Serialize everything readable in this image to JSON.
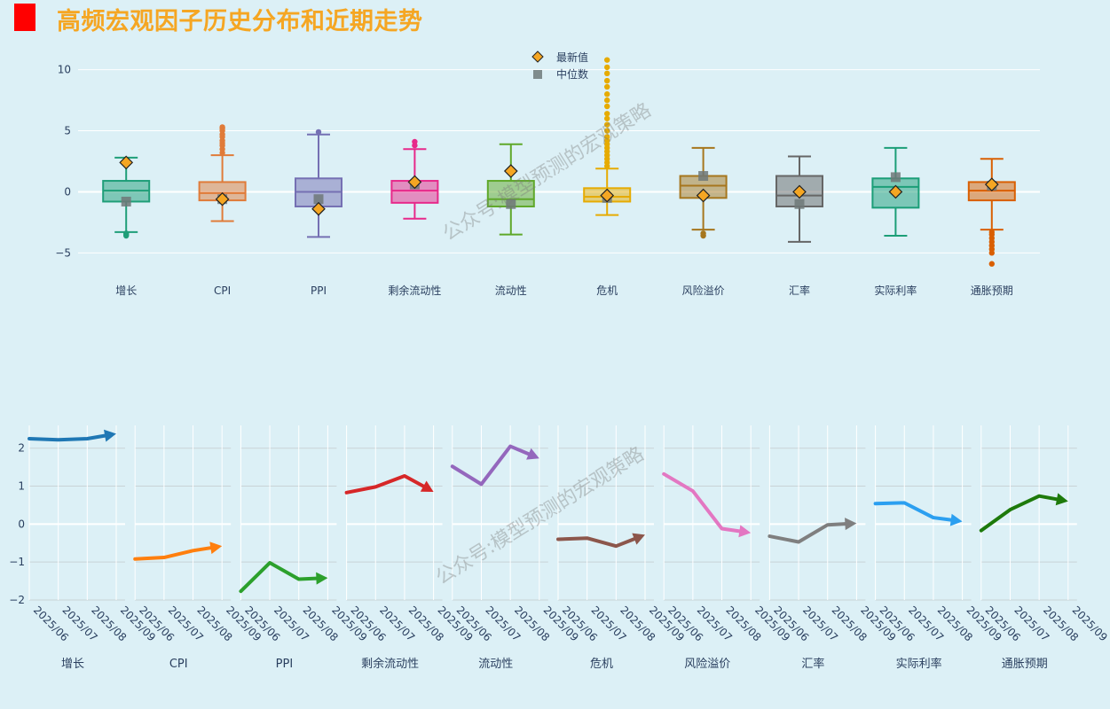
{
  "title": "高频宏观因子历史分布和近期走势",
  "watermark": "公众号:模型预测的宏观策略",
  "chart_data": [
    {
      "type": "box",
      "title": "高频宏观因子历史分布",
      "ylim": [
        -6.5,
        11.5
      ],
      "yticks": [
        -5,
        0,
        5,
        10
      ],
      "ytick_labels": [
        "−5",
        "0",
        "5",
        "10"
      ],
      "legend": [
        {
          "label": "最新值",
          "marker": "diamond",
          "color": "#f5a623"
        },
        {
          "label": "中位数",
          "marker": "square",
          "color": "#7f8c8d"
        }
      ],
      "categories": [
        "增长",
        "CPI",
        "PPI",
        "剩余流动性",
        "流动性",
        "危机",
        "风险溢价",
        "汇率",
        "实际利率",
        "通胀预期"
      ],
      "colors": [
        "#1f9e78",
        "#e07b39",
        "#7570b3",
        "#e7298a",
        "#5fa82a",
        "#e6ab02",
        "#a6761d",
        "#666666",
        "#1b9e77",
        "#d95f02"
      ],
      "boxes": [
        {
          "q1": -0.8,
          "median": 0.1,
          "q3": 0.9,
          "lower": -3.3,
          "upper": 2.8,
          "outliers": [
            -3.6,
            -3.5,
            -3.4
          ],
          "latest": 2.4,
          "mid_marker": -0.8
        },
        {
          "q1": -0.7,
          "median": -0.1,
          "q3": 0.8,
          "lower": -2.4,
          "upper": 3.0,
          "outliers": [
            3.2,
            3.5,
            3.8,
            4.0,
            4.2,
            4.5,
            4.7,
            5.0,
            5.2,
            5.3
          ],
          "latest": -0.6,
          "mid_marker": -0.6
        },
        {
          "q1": -1.2,
          "median": 0.0,
          "q3": 1.1,
          "lower": -3.7,
          "upper": 4.7,
          "outliers": [
            4.9
          ],
          "latest": -1.4,
          "mid_marker": -0.6
        },
        {
          "q1": -0.9,
          "median": 0.1,
          "q3": 0.9,
          "lower": -2.2,
          "upper": 3.5,
          "outliers": [
            3.8,
            4.1
          ],
          "latest": 0.8,
          "mid_marker": 0.6
        },
        {
          "q1": -1.2,
          "median": -0.6,
          "q3": 0.9,
          "lower": -3.5,
          "upper": 3.9,
          "outliers": [],
          "latest": 1.7,
          "mid_marker": -1.0
        },
        {
          "q1": -0.8,
          "median": -0.4,
          "q3": 0.3,
          "lower": -1.9,
          "upper": 1.9,
          "outliers": [
            2.1,
            2.4,
            2.7,
            3.0,
            3.3,
            3.6,
            3.9,
            4.2,
            4.5,
            5.0,
            5.5,
            6.0,
            6.4,
            7.0,
            7.5,
            8.0,
            8.6,
            9.1,
            9.7,
            10.2,
            10.8
          ],
          "latest": -0.3,
          "mid_marker": -0.5
        },
        {
          "q1": -0.5,
          "median": 0.5,
          "q3": 1.3,
          "lower": -3.1,
          "upper": 3.6,
          "outliers": [
            -3.4,
            -3.6
          ],
          "latest": -0.3,
          "mid_marker": 1.3
        },
        {
          "q1": -1.2,
          "median": -0.3,
          "q3": 1.3,
          "lower": -4.1,
          "upper": 2.9,
          "outliers": [],
          "latest": 0.0,
          "mid_marker": -1.0
        },
        {
          "q1": -1.3,
          "median": 0.4,
          "q3": 1.1,
          "lower": -3.6,
          "upper": 3.6,
          "outliers": [],
          "latest": 0.0,
          "mid_marker": 1.2
        },
        {
          "q1": -0.7,
          "median": 0.1,
          "q3": 0.8,
          "lower": -3.1,
          "upper": 2.7,
          "outliers": [
            -3.3,
            -3.5,
            -3.8,
            -4.1,
            -4.4,
            -4.7,
            -5.0,
            -5.9
          ],
          "latest": 0.6,
          "mid_marker": 0.5
        }
      ]
    },
    {
      "type": "line",
      "title": "高频宏观因子近期走势",
      "ylim": [
        -2.0,
        2.6
      ],
      "yticks": [
        -2,
        -1,
        0,
        1,
        2
      ],
      "ytick_labels": [
        "−2",
        "−1",
        "0",
        "1",
        "2"
      ],
      "x": [
        "2025/06",
        "2025/07",
        "2025/08",
        "2025/09"
      ],
      "series": [
        {
          "name": "增长",
          "color": "#1f77b4",
          "values": [
            2.25,
            2.22,
            2.25,
            2.38
          ]
        },
        {
          "name": "CPI",
          "color": "#ff7f0e",
          "values": [
            -0.92,
            -0.88,
            -0.7,
            -0.58
          ]
        },
        {
          "name": "PPI",
          "color": "#2ca02c",
          "values": [
            -1.77,
            -1.02,
            -1.45,
            -1.42
          ]
        },
        {
          "name": "剩余流动性",
          "color": "#d62728",
          "values": [
            0.83,
            0.98,
            1.27,
            0.85
          ]
        },
        {
          "name": "流动性",
          "color": "#9467bd",
          "values": [
            1.52,
            1.05,
            2.05,
            1.73
          ]
        },
        {
          "name": "危机",
          "color": "#8c564b",
          "values": [
            -0.4,
            -0.37,
            -0.58,
            -0.28
          ]
        },
        {
          "name": "风险溢价",
          "color": "#e377c2",
          "values": [
            1.32,
            0.87,
            -0.12,
            -0.23
          ]
        },
        {
          "name": "汇率",
          "color": "#7f7f7f",
          "values": [
            -0.32,
            -0.47,
            -0.02,
            0.02
          ]
        },
        {
          "name": "实际利率",
          "color": "#2b9ff0",
          "values": [
            0.54,
            0.56,
            0.17,
            0.07
          ]
        },
        {
          "name": "通胀预期",
          "color": "#1e7a0b",
          "values": [
            -0.17,
            0.38,
            0.74,
            0.6
          ]
        }
      ]
    }
  ]
}
